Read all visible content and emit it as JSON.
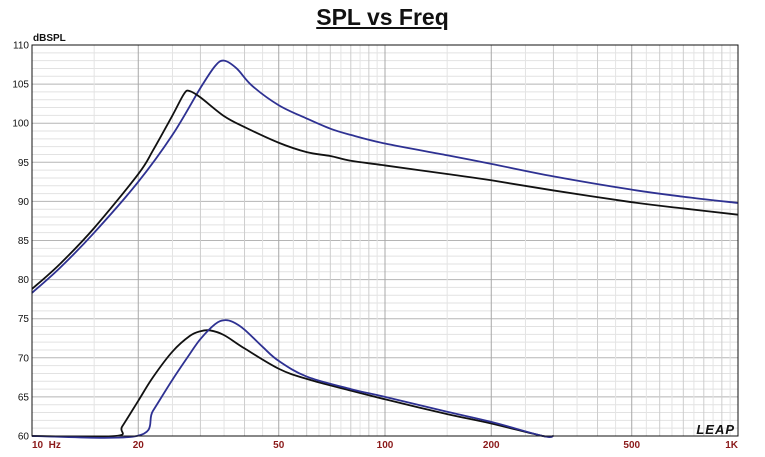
{
  "chart_data": {
    "type": "line",
    "title": "SPL vs Freq",
    "ylabel": "dBSPL",
    "xlabel": "",
    "xscale": "log",
    "xlim": [
      10,
      1000
    ],
    "ylim": [
      60,
      110
    ],
    "grid": true,
    "y_ticks": [
      "110",
      "105",
      "100",
      "95",
      "90",
      "85",
      "80",
      "75",
      "70",
      "65",
      "60"
    ],
    "x_ticks": [
      {
        "value": 10,
        "label": "10  Hz"
      },
      {
        "value": 20,
        "label": "20"
      },
      {
        "value": 50,
        "label": "50"
      },
      {
        "value": 100,
        "label": "100"
      },
      {
        "value": 200,
        "label": "200"
      },
      {
        "value": 500,
        "label": "500"
      },
      {
        "value": 1000,
        "label": "1K"
      }
    ],
    "annotation": "LEAP",
    "series": [
      {
        "name": "upper-blue",
        "color": "#2e3192",
        "x": [
          10,
          12,
          15,
          20,
          25,
          30,
          33,
          35,
          38,
          42,
          50,
          60,
          70,
          80,
          100,
          150,
          200,
          300,
          500,
          700,
          1000
        ],
        "y": [
          78.3,
          81.5,
          86,
          92.5,
          98.5,
          104.5,
          107.3,
          108,
          107,
          104.8,
          102.3,
          100.6,
          99.3,
          98.5,
          97.4,
          95.9,
          94.8,
          93.2,
          91.5,
          90.6,
          89.8
        ]
      },
      {
        "name": "upper-black",
        "color": "#111111",
        "x": [
          10,
          12,
          15,
          20,
          22,
          25,
          27,
          28,
          30,
          35,
          40,
          50,
          60,
          70,
          80,
          100,
          150,
          200,
          300,
          500,
          700,
          1000
        ],
        "y": [
          78.8,
          82,
          86.6,
          93.5,
          96.5,
          101,
          103.8,
          104.1,
          103.3,
          100.9,
          99.5,
          97.5,
          96.3,
          95.8,
          95.2,
          94.6,
          93.5,
          92.7,
          91.4,
          89.9,
          89.1,
          88.3
        ]
      },
      {
        "name": "lower-black",
        "color": "#111111",
        "x": [
          10,
          17.2,
          18,
          20,
          22,
          25,
          28,
          30,
          32,
          35,
          40,
          50,
          60,
          80,
          100,
          150,
          200,
          280,
          300
        ],
        "y": [
          60,
          60,
          61.2,
          64.5,
          67.5,
          70.8,
          72.8,
          73.4,
          73.5,
          72.9,
          71.2,
          68.6,
          67.3,
          65.8,
          64.7,
          62.8,
          61.6,
          60,
          60
        ]
      },
      {
        "name": "lower-blue",
        "color": "#2e3192",
        "x": [
          10,
          19.8,
          22,
          25,
          28,
          30,
          33,
          35,
          37,
          40,
          45,
          50,
          60,
          80,
          100,
          150,
          200,
          280,
          300
        ],
        "y": [
          60,
          60,
          63.2,
          67.2,
          70.5,
          72.4,
          74.3,
          74.8,
          74.6,
          73.6,
          71.4,
          69.6,
          67.6,
          66,
          65,
          63.1,
          61.8,
          60,
          60
        ]
      }
    ]
  }
}
